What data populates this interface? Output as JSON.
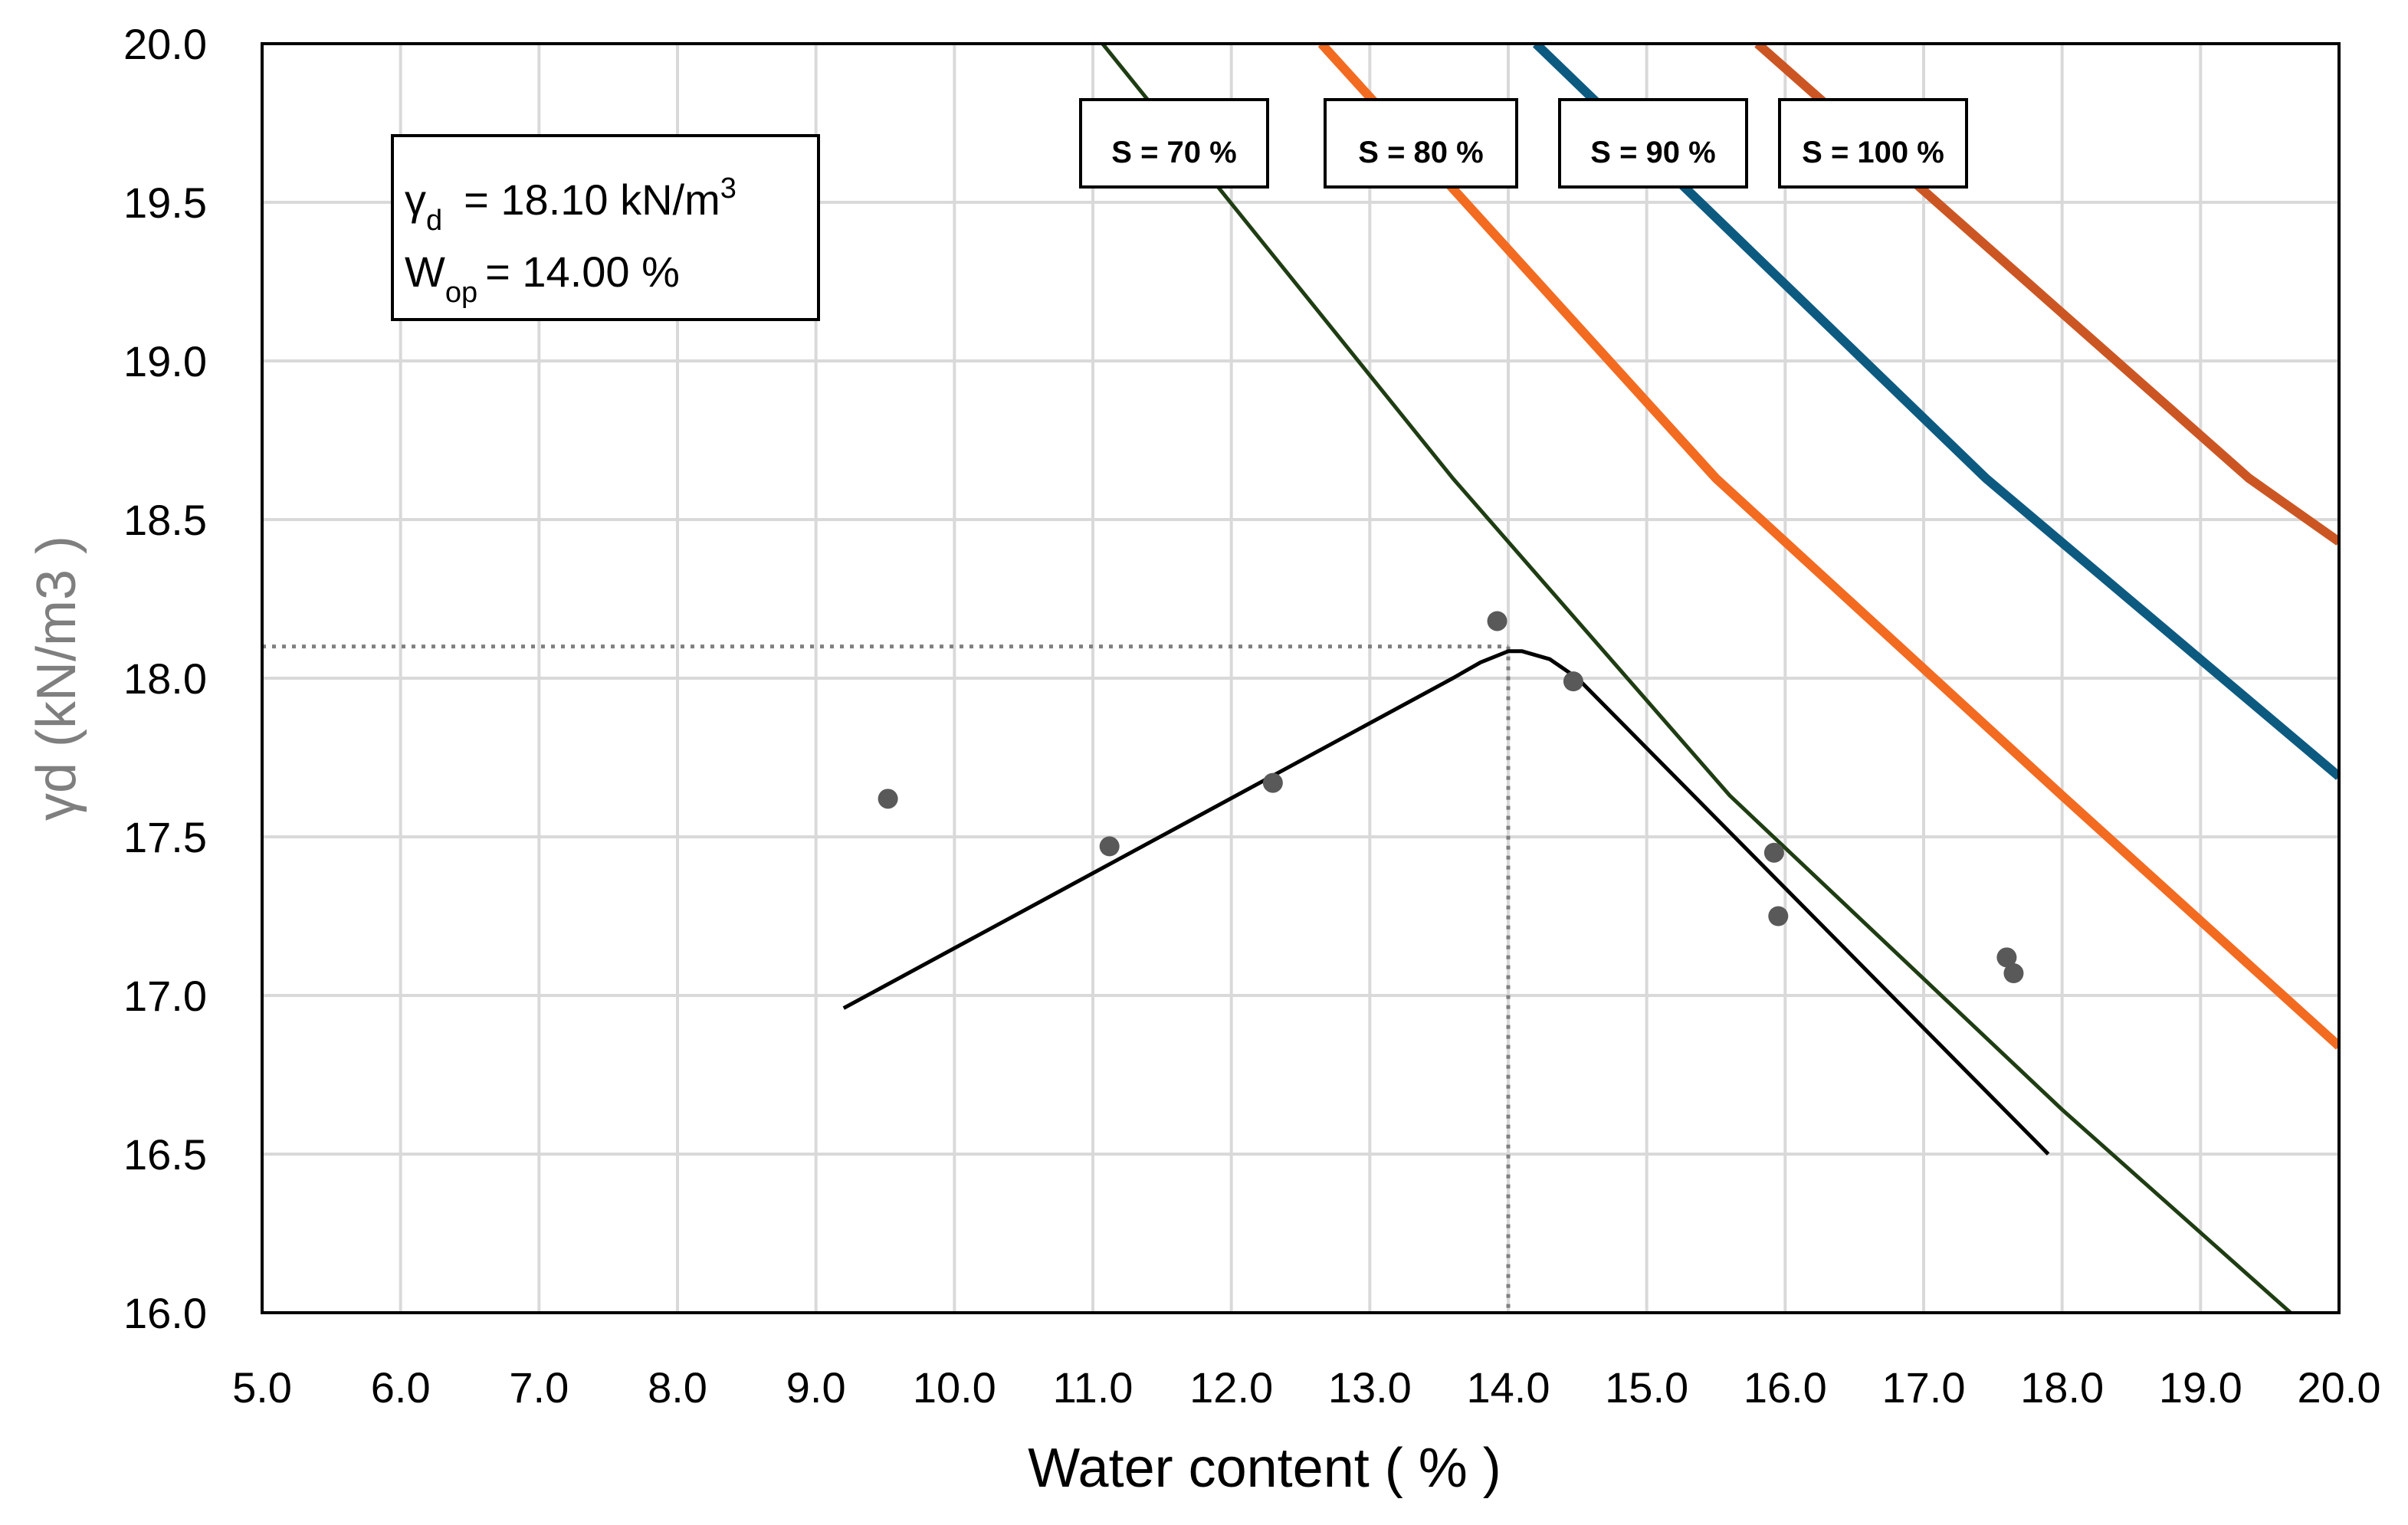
{
  "chart_data": {
    "type": "scatter",
    "title": "",
    "xlabel": "Water content ( % )",
    "ylabel_symbol": "γd",
    "ylabel_unit": " (kN/m3 )",
    "xlim": [
      5.0,
      20.0
    ],
    "ylim": [
      16.0,
      20.0
    ],
    "x_ticks": [
      "5.0",
      "6.0",
      "7.0",
      "8.0",
      "9.0",
      "10.0",
      "11.0",
      "12.0",
      "13.0",
      "14.0",
      "15.0",
      "16.0",
      "17.0",
      "18.0",
      "19.0",
      "20.0"
    ],
    "y_ticks": [
      "16.0",
      "16.5",
      "17.0",
      "17.5",
      "18.0",
      "18.5",
      "19.0",
      "19.5",
      "20.0"
    ],
    "grid": true,
    "points": [
      {
        "x": 9.52,
        "y": 17.62
      },
      {
        "x": 11.12,
        "y": 17.47
      },
      {
        "x": 12.3,
        "y": 17.67
      },
      {
        "x": 13.92,
        "y": 18.18
      },
      {
        "x": 14.47,
        "y": 17.99
      },
      {
        "x": 15.92,
        "y": 17.45
      },
      {
        "x": 15.95,
        "y": 17.25
      },
      {
        "x": 17.6,
        "y": 17.12
      },
      {
        "x": 17.65,
        "y": 17.07
      }
    ],
    "fit_curve": [
      [
        9.2,
        16.96
      ],
      [
        13.6,
        18.0
      ],
      [
        13.8,
        18.05
      ],
      [
        14.0,
        18.085
      ],
      [
        14.1,
        18.085
      ],
      [
        14.3,
        18.06
      ],
      [
        14.5,
        18.0
      ],
      [
        17.9,
        16.5
      ]
    ],
    "optimum": {
      "x": 14.0,
      "y": 18.1
    },
    "saturation_lines": [
      {
        "label": "S = 70 %",
        "color": "#1f3d13",
        "points": [
          [
            11.07,
            20.0
          ],
          [
            13.6,
            18.63
          ],
          [
            15.6,
            17.63
          ],
          [
            18.0,
            16.64
          ],
          [
            19.65,
            16.0
          ]
        ]
      },
      {
        "label": "S = 80 %",
        "color": "#f26b21",
        "points": [
          [
            12.65,
            20.0
          ],
          [
            15.5,
            18.63
          ],
          [
            18.0,
            17.63
          ],
          [
            20.0,
            16.84
          ]
        ]
      },
      {
        "label": "S = 90 %",
        "color": "#0d5a80",
        "points": [
          [
            14.2,
            20.0
          ],
          [
            17.45,
            18.63
          ],
          [
            20.0,
            17.69
          ]
        ]
      },
      {
        "label": "S = 100 %",
        "color": "#cc5623",
        "points": [
          [
            15.8,
            20.0
          ],
          [
            19.35,
            18.63
          ],
          [
            20.0,
            18.43
          ]
        ]
      }
    ],
    "result_box": {
      "gamma_symbol": "γ",
      "gamma_sub": "d",
      "gamma_value": "=  18.10  kN/m",
      "gamma_sup": "3",
      "w_symbol": "W",
      "w_sub": "op",
      "w_value": "=  14.00  %"
    }
  }
}
